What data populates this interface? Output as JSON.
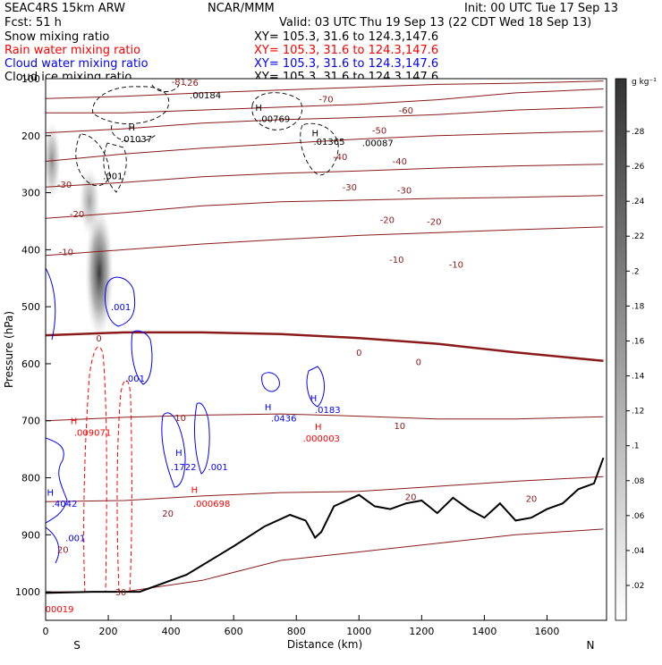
{
  "header": {
    "model": "SEAC4RS 15km ARW",
    "fcst": "Fcst:    51 h",
    "org": "NCAR/MMM",
    "init": "Init: 00 UTC Tue 17 Sep 13",
    "valid": "Valid: 03 UTC Thu 19 Sep 13 (22 CDT Wed 18 Sep 13)",
    "fields": [
      {
        "label": "Snow mixing ratio",
        "xy": "XY= 105.3, 31.6 to 124.3,147.6",
        "color": "#000000"
      },
      {
        "label": "Rain water mixing ratio",
        "xy": "XY= 105.3, 31.6 to 124.3,147.6",
        "color": "#ff0000"
      },
      {
        "label": "Cloud water mixing ratio",
        "xy": "XY= 105.3, 31.6 to 124.3,147.6",
        "color": "#0000ff"
      },
      {
        "label": "Cloud ice mixing ratio",
        "xy": "XY= 105.3, 31.6 to 124.3,147.6",
        "color": "#000000"
      }
    ]
  },
  "colors": {
    "isotherm": "#8b1a1a",
    "rain": "#ff0000",
    "cloud_water": "#0000ff",
    "cloud_ice": "#000000",
    "terrain": "#000000"
  },
  "chart_data": {
    "type": "cross-section",
    "xlabel": "Distance (km)",
    "ylabel": "Pressure (hPa)",
    "xlim": [
      0,
      1790
    ],
    "ylim": [
      1050,
      100
    ],
    "x_ticks": [
      0,
      200,
      400,
      600,
      800,
      1000,
      1200,
      1400,
      1600
    ],
    "y_ticks": [
      1000,
      900,
      800,
      700,
      600,
      500,
      400,
      300,
      200,
      100
    ],
    "x_ends": {
      "left": "S",
      "right": "N"
    },
    "colorbar": {
      "units": "g kg⁻¹",
      "ticks": [
        ".02",
        ".04",
        ".06",
        ".08",
        ".1",
        ".12",
        ".14",
        ".16",
        ".18",
        ".2",
        ".22",
        ".24",
        ".26",
        ".28"
      ]
    },
    "isotherms": [
      {
        "value": -70,
        "label": "-70",
        "p": [
          135,
          131,
          125,
          120,
          115,
          110,
          108,
          104
        ]
      },
      {
        "value": -60,
        "label": "-60",
        "p": [
          160,
          160,
          155,
          150,
          145,
          137,
          125,
          118
        ]
      },
      {
        "value": -50,
        "label": "-50",
        "p": [
          195,
          188,
          178,
          172,
          168,
          163,
          155,
          150
        ]
      },
      {
        "value": -40,
        "label": "-40",
        "p": [
          245,
          232,
          222,
          214,
          206,
          200,
          196,
          192
        ]
      },
      {
        "value": -30,
        "label": "-30",
        "p": [
          290,
          282,
          272,
          266,
          262,
          257,
          253,
          250
        ]
      },
      {
        "value": -20,
        "label": "-20",
        "p": [
          345,
          335,
          323,
          316,
          313,
          310,
          308,
          305
        ]
      },
      {
        "value": -10,
        "label": "-10",
        "p": [
          410,
          400,
          390,
          382,
          375,
          370,
          365,
          360
        ]
      },
      {
        "value": 0,
        "label": "0",
        "p": [
          550,
          545,
          545,
          548,
          555,
          565,
          580,
          595
        ],
        "thick": true
      },
      {
        "value": 10,
        "label": "10",
        "p": [
          700,
          694,
          690,
          688,
          692,
          697,
          697,
          693
        ]
      },
      {
        "value": 20,
        "label": "20",
        "p": [
          842,
          840,
          832,
          826,
          824,
          815,
          806,
          798
        ]
      },
      {
        "value": 30,
        "label": "30",
        "p": [
          1000,
          1000,
          980,
          945,
          930,
          915,
          900,
          890
        ]
      }
    ],
    "isotherm_x": [
      0,
      250,
      500,
      750,
      1000,
      1250,
      1500,
      1780
    ],
    "terrain": {
      "x": [
        0,
        150,
        300,
        450,
        600,
        700,
        780,
        830,
        860,
        880,
        920,
        1000,
        1050,
        1100,
        1150,
        1200,
        1250,
        1300,
        1350,
        1400,
        1450,
        1500,
        1550,
        1600,
        1650,
        1700,
        1750,
        1780
      ],
      "p": [
        1002,
        1000,
        1000,
        970,
        920,
        885,
        865,
        875,
        905,
        895,
        850,
        830,
        850,
        855,
        845,
        840,
        862,
        835,
        855,
        870,
        845,
        875,
        870,
        855,
        845,
        820,
        810,
        765
      ]
    },
    "annotations": [
      {
        "text": ".01037",
        "x": 290,
        "p": 205,
        "color": "#000000"
      },
      {
        "text": ".00184",
        "x": 510,
        "p": 128,
        "color": "#000000"
      },
      {
        "text": ".00769",
        "x": 730,
        "p": 170,
        "color": "#000000"
      },
      {
        "text": ".01365",
        "x": 905,
        "p": 210,
        "color": "#000000"
      },
      {
        "text": ".00087",
        "x": 1060,
        "p": 212,
        "color": "#000000"
      },
      {
        "text": ".001",
        "x": 215,
        "p": 270,
        "color": "#000000"
      },
      {
        "text": ".001",
        "x": 240,
        "p": 500,
        "color": "#0000ff"
      },
      {
        "text": ".001",
        "x": 285,
        "p": 625,
        "color": "#0000ff"
      },
      {
        "text": ".009071",
        "x": 150,
        "p": 720,
        "color": "#ff0000"
      },
      {
        "text": ".0436",
        "x": 760,
        "p": 695,
        "color": "#0000ff"
      },
      {
        "text": ".0183",
        "x": 900,
        "p": 680,
        "color": "#0000ff"
      },
      {
        "text": ".000003",
        "x": 880,
        "p": 730,
        "color": "#ff0000"
      },
      {
        "text": ".1722",
        "x": 440,
        "p": 780,
        "color": "#0000ff"
      },
      {
        "text": ".001",
        "x": 550,
        "p": 780,
        "color": "#0000ff"
      },
      {
        "text": ".000698",
        "x": 530,
        "p": 845,
        "color": "#ff0000"
      },
      {
        "text": ".4042",
        "x": 60,
        "p": 845,
        "color": "#0000ff"
      },
      {
        "text": ".001",
        "x": 95,
        "p": 905,
        "color": "#0000ff"
      },
      {
        "text": ".00019",
        "x": 40,
        "p": 1030,
        "color": "#ff0000"
      }
    ],
    "h_markers": [
      {
        "text": "H",
        "x": 275,
        "p": 185,
        "color": "#000000"
      },
      {
        "text": "H",
        "x": 680,
        "p": 150,
        "color": "#000000"
      },
      {
        "text": "H",
        "x": 860,
        "p": 195,
        "color": "#000000"
      },
      {
        "text": "H",
        "x": 90,
        "p": 700,
        "color": "#ff0000"
      },
      {
        "text": "H",
        "x": 710,
        "p": 675,
        "color": "#0000ff"
      },
      {
        "text": "H",
        "x": 855,
        "p": 660,
        "color": "#0000ff"
      },
      {
        "text": "H",
        "x": 870,
        "p": 710,
        "color": "#ff0000"
      },
      {
        "text": "H",
        "x": 425,
        "p": 755,
        "color": "#0000ff"
      },
      {
        "text": "H",
        "x": 475,
        "p": 820,
        "color": "#ff0000"
      },
      {
        "text": "H",
        "x": 15,
        "p": 825,
        "color": "#0000ff"
      }
    ],
    "isotherm_labels": [
      {
        "text": "-70",
        "x": 895,
        "p": 135
      },
      {
        "text": "-60",
        "x": 1150,
        "p": 155
      },
      {
        "text": "-50",
        "x": 1065,
        "p": 190
      },
      {
        "text": "-40",
        "x": 940,
        "p": 236
      },
      {
        "text": "-40",
        "x": 1130,
        "p": 244
      },
      {
        "text": "-30",
        "x": 970,
        "p": 290
      },
      {
        "text": "-30",
        "x": 1145,
        "p": 295
      },
      {
        "text": "-30",
        "x": 60,
        "p": 285
      },
      {
        "text": "-20",
        "x": 100,
        "p": 337
      },
      {
        "text": "-20",
        "x": 1090,
        "p": 347
      },
      {
        "text": "-20",
        "x": 1240,
        "p": 350
      },
      {
        "text": "-10",
        "x": 65,
        "p": 403
      },
      {
        "text": "-10",
        "x": 1120,
        "p": 417
      },
      {
        "text": "-10",
        "x": 1310,
        "p": 425
      },
      {
        "text": "0",
        "x": 170,
        "p": 555
      },
      {
        "text": "0",
        "x": 1000,
        "p": 580
      },
      {
        "text": "0",
        "x": 1190,
        "p": 596
      },
      {
        "text": "10",
        "x": 430,
        "p": 694
      },
      {
        "text": "10",
        "x": 1130,
        "p": 708
      },
      {
        "text": "20",
        "x": 390,
        "p": 862
      },
      {
        "text": "20",
        "x": 1165,
        "p": 833
      },
      {
        "text": "20",
        "x": 1550,
        "p": 836
      },
      {
        "text": "20",
        "x": 55,
        "p": 925
      },
      {
        "text": "30",
        "x": 240,
        "p": 1000
      },
      {
        "text": "-81",
        "x": 425,
        "p": 105
      },
      {
        "text": ".26",
        "x": 465,
        "p": 106
      }
    ]
  }
}
